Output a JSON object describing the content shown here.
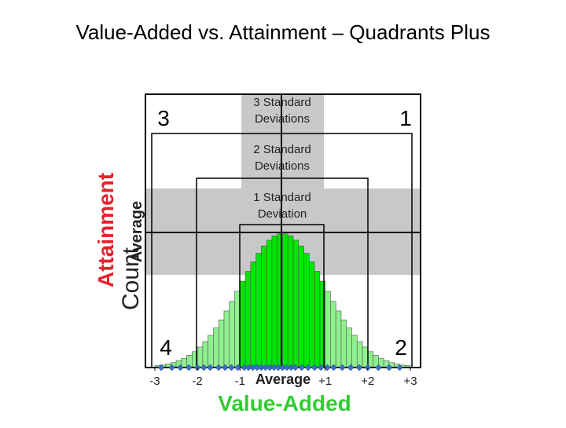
{
  "chart_data": {
    "type": "histogram",
    "title": "Value-Added vs. Attainment – Quadrants Plus",
    "xlabel": "Value-Added",
    "x_center_label": "Average",
    "ylabel": "Attainment",
    "y_center_label": "Average",
    "count_label": "Count",
    "quadrants": [
      "1",
      "2",
      "3",
      "4"
    ],
    "bands": [
      "3 Standard Deviations",
      "2 Standard Deviations",
      "1 Standard Deviation"
    ],
    "bins": [
      -3,
      -2.875,
      -2.75,
      -2.625,
      -2.5,
      -2.375,
      -2.25,
      -2.125,
      -2,
      -1.875,
      -1.75,
      -1.625,
      -1.5,
      -1.375,
      -1.25,
      -1.125,
      -1,
      -0.875,
      -0.75,
      -0.625,
      -0.5,
      -0.375,
      -0.25,
      -0.125,
      0,
      0.125,
      0.25,
      0.375,
      0.5,
      0.625,
      0.75,
      0.875,
      1,
      1.125,
      1.25,
      1.375,
      1.5,
      1.625,
      1.75,
      1.875,
      2,
      2.125,
      2.25,
      2.375,
      2.5,
      2.625,
      2.75,
      2.875,
      3
    ],
    "values": [
      0.7,
      0.9,
      1.3,
      1.8,
      2.5,
      3.4,
      4.5,
      5.8,
      7.5,
      9.5,
      11.8,
      14.5,
      17.4,
      20.7,
      24.2,
      27.9,
      31.6,
      35.2,
      38.7,
      41.8,
      44.5,
      46.6,
      48.2,
      48.9,
      48.9,
      48.2,
      46.6,
      44.5,
      41.8,
      38.7,
      35.2,
      31.6,
      27.9,
      24.2,
      20.7,
      17.4,
      14.5,
      11.8,
      9.5,
      7.5,
      5.8,
      4.5,
      3.4,
      2.5,
      1.8,
      1.3,
      0.9,
      0.7
    ],
    "colors": [
      "#8ef08e",
      "#8ef08e",
      "#8ef08e",
      "#8ef08e",
      "#8ef08e",
      "#8ef08e",
      "#8ef08e",
      "#8ef08e",
      "#8ef08e",
      "#8ef08e",
      "#8ef08e",
      "#8ef08e",
      "#8ef08e",
      "#8ef08e",
      "#8ef08e",
      "#8ef08e",
      "#00e600",
      "#00e600",
      "#00e600",
      "#00e600",
      "#00e600",
      "#00e600",
      "#00e600",
      "#00e600",
      "#00e600",
      "#00e600",
      "#00e600",
      "#00e600",
      "#00e600",
      "#00e600",
      "#00e600",
      "#00e600",
      "#8ef08e",
      "#8ef08e",
      "#8ef08e",
      "#8ef08e",
      "#8ef08e",
      "#8ef08e",
      "#8ef08e",
      "#8ef08e",
      "#8ef08e",
      "#8ef08e",
      "#8ef08e",
      "#8ef08e",
      "#8ef08e",
      "#8ef08e",
      "#8ef08e",
      "#8ef08e"
    ],
    "markers": {
      "color": "#3a6fc4",
      "x": [
        -2.85,
        -2.6,
        -2.4,
        -2.2,
        -2.0,
        -1.85,
        -1.7,
        -1.5,
        -1.35,
        -1.2,
        -1.05,
        -0.9,
        -0.8,
        -0.7,
        -0.6,
        -0.5,
        -0.4,
        -0.3,
        -0.2,
        -0.1,
        0,
        0.1,
        0.2,
        0.3,
        0.45,
        0.6,
        0.75,
        0.9,
        1.05,
        1.2,
        1.4,
        1.6,
        1.8,
        2.0,
        2.25,
        2.5,
        2.75
      ]
    },
    "xlim": [
      -3.22,
      3.24
    ],
    "ylim": [
      0,
      100
    ],
    "xticks": [
      -3,
      -2,
      -1,
      {
        "value": 1,
        "label": "+1"
      },
      {
        "value": 2,
        "label": "+2"
      },
      {
        "value": 3,
        "label": "+3"
      }
    ]
  }
}
